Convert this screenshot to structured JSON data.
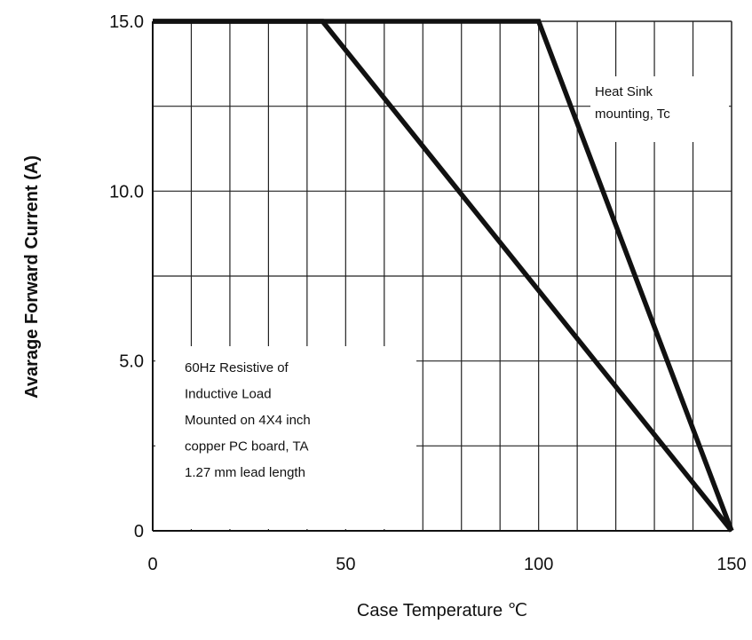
{
  "chart_data": {
    "type": "line",
    "xlabel": "Case Temperature ℃",
    "ylabel": "Avarage Forward Current (A)",
    "xlim": [
      0,
      150
    ],
    "ylim": [
      0,
      15
    ],
    "x_ticks": [
      "0",
      "50",
      "100",
      "150"
    ],
    "y_ticks": [
      "0",
      "5.0",
      "10.0",
      "15.0"
    ],
    "grid": true,
    "series": [
      {
        "x": [
          0,
          100,
          150
        ],
        "y": [
          15.0,
          15.0,
          0
        ]
      },
      {
        "x": [
          0,
          44,
          150
        ],
        "y": [
          15.0,
          15.0,
          0
        ]
      }
    ],
    "annotations": [
      {
        "lines": [
          "Heat Sink",
          "mounting, Tc"
        ]
      },
      {
        "lines": [
          "60Hz Resistive of",
          "Inductive Load",
          "Mounted on 4X4 inch",
          "copper PC board, TA",
          "1.27 mm lead length"
        ]
      }
    ]
  }
}
